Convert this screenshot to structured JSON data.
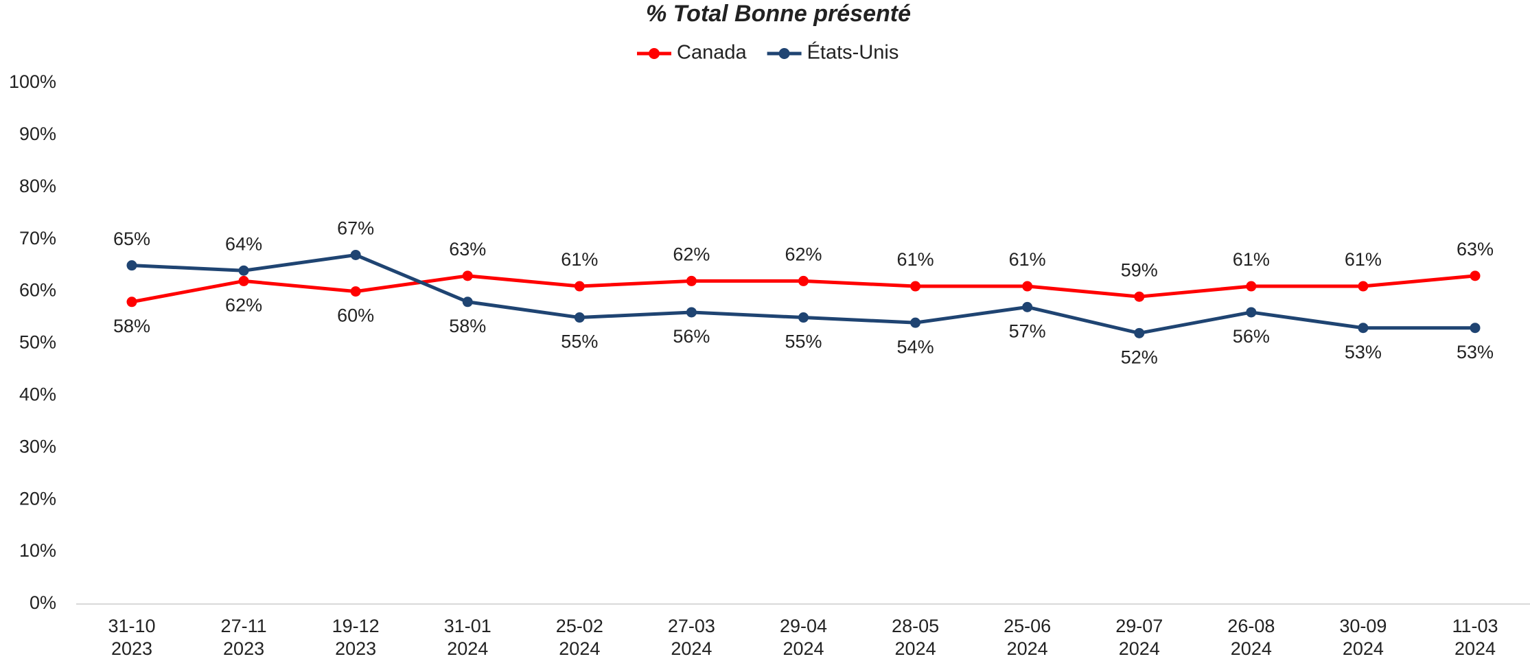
{
  "chart_data": {
    "type": "line",
    "title": "% Total Bonne présenté",
    "categories": [
      [
        "31-10",
        "2023"
      ],
      [
        "27-11",
        "2023"
      ],
      [
        "19-12",
        "2023"
      ],
      [
        "31-01",
        "2024"
      ],
      [
        "25-02",
        "2024"
      ],
      [
        "27-03",
        "2024"
      ],
      [
        "29-04",
        "2024"
      ],
      [
        "28-05",
        "2024"
      ],
      [
        "25-06",
        "2024"
      ],
      [
        "29-07",
        "2024"
      ],
      [
        "26-08",
        "2024"
      ],
      [
        "30-09",
        "2024"
      ],
      [
        "11-03",
        "2024"
      ]
    ],
    "series": [
      {
        "name": "Canada",
        "color": "#ff0000",
        "values": [
          58,
          62,
          60,
          63,
          61,
          62,
          62,
          61,
          61,
          59,
          61,
          61,
          63
        ],
        "value_labels": [
          "58%",
          "62%",
          "60%",
          "63%",
          "61%",
          "62%",
          "62%",
          "61%",
          "61%",
          "59%",
          "61%",
          "61%",
          "63%"
        ]
      },
      {
        "name": "États-Unis",
        "color": "#1f4472",
        "values": [
          65,
          64,
          67,
          58,
          55,
          56,
          55,
          54,
          57,
          52,
          56,
          53,
          53
        ],
        "value_labels": [
          "65%",
          "64%",
          "67%",
          "58%",
          "55%",
          "56%",
          "55%",
          "54%",
          "57%",
          "52%",
          "56%",
          "53%",
          "53%"
        ]
      }
    ],
    "ylim": [
      0,
      100
    ],
    "yticks": [
      {
        "value": 0,
        "label": "0%"
      },
      {
        "value": 10,
        "label": "10%"
      },
      {
        "value": 20,
        "label": "20%"
      },
      {
        "value": 30,
        "label": "30%"
      },
      {
        "value": 40,
        "label": "40%"
      },
      {
        "value": 50,
        "label": "50%"
      },
      {
        "value": 60,
        "label": "60%"
      },
      {
        "value": 70,
        "label": "70%"
      },
      {
        "value": 80,
        "label": "80%"
      },
      {
        "value": 90,
        "label": "90%"
      },
      {
        "value": 100,
        "label": "100%"
      }
    ],
    "grid": false,
    "legend": "top"
  }
}
